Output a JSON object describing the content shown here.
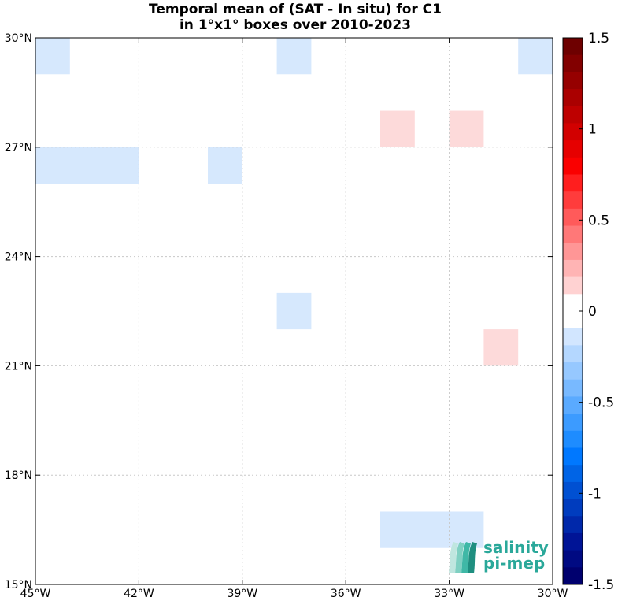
{
  "title_line1": "Temporal mean of (SAT - In situ) for C1",
  "title_line2": "in 1°x1° boxes over 2010-2023",
  "lon_ticks": [
    "45°W",
    "42°W",
    "39°W",
    "36°W",
    "33°W",
    "30°W"
  ],
  "lat_ticks": [
    "15°N",
    "18°N",
    "21°N",
    "24°N",
    "27°N",
    "30°N"
  ],
  "colorbar": {
    "ticks": [
      "1.5",
      "1",
      "0.5",
      "0",
      "-0.5",
      "-1",
      "-1.5"
    ],
    "range": [
      -1.5,
      1.5
    ],
    "colors_top_to_bottom": [
      "#6e0000",
      "#820000",
      "#960000",
      "#aa0000",
      "#be0000",
      "#d20000",
      "#e60000",
      "#fa0000",
      "#ff1e1e",
      "#ff3c3c",
      "#ff5a5a",
      "#ff7878",
      "#ff9696",
      "#ffb4b4",
      "#ffd2d2",
      "#ffffff",
      "#ffffff",
      "#d2e6ff",
      "#b4d7ff",
      "#96c8ff",
      "#78b9ff",
      "#5aaaff",
      "#3c9bff",
      "#1e8cff",
      "#0078ff",
      "#0064e6",
      "#0050d2",
      "#003cbe",
      "#0028aa",
      "#001496",
      "#000a82",
      "#00006e"
    ]
  },
  "logo": {
    "line1": "salinity",
    "line2": "pi-mep",
    "icon": "salinity-waves-logo-icon"
  },
  "chart_data": {
    "type": "heatmap",
    "title": "Temporal mean of (SAT - In situ) for C1 in 1°x1° boxes over 2010-2023",
    "xlim": [
      -45,
      -30
    ],
    "ylim": [
      15,
      30
    ],
    "grid": true,
    "cells": [
      {
        "lon_min": -45,
        "lon_max": -44,
        "lat_min": 29,
        "lat_max": 30,
        "value": -0.15,
        "color": "#d6e8fd"
      },
      {
        "lon_min": -38,
        "lon_max": -37,
        "lat_min": 29,
        "lat_max": 30,
        "value": -0.15,
        "color": "#d6e8fd"
      },
      {
        "lon_min": -31,
        "lon_max": -30,
        "lat_min": 29,
        "lat_max": 30,
        "value": -0.15,
        "color": "#d6e8fd"
      },
      {
        "lon_min": -35,
        "lon_max": -34,
        "lat_min": 27,
        "lat_max": 28,
        "value": 0.15,
        "color": "#fddada"
      },
      {
        "lon_min": -33,
        "lon_max": -32,
        "lat_min": 27,
        "lat_max": 28,
        "value": 0.15,
        "color": "#fddada"
      },
      {
        "lon_min": -45,
        "lon_max": -42,
        "lat_min": 26,
        "lat_max": 27,
        "value": -0.15,
        "color": "#d6e8fd"
      },
      {
        "lon_min": -40,
        "lon_max": -39,
        "lat_min": 26,
        "lat_max": 27,
        "value": -0.15,
        "color": "#d6e8fd"
      },
      {
        "lon_min": -38,
        "lon_max": -37,
        "lat_min": 22,
        "lat_max": 23,
        "value": -0.15,
        "color": "#d6e8fd"
      },
      {
        "lon_min": -32,
        "lon_max": -31,
        "lat_min": 21,
        "lat_max": 22,
        "value": 0.15,
        "color": "#fddada"
      },
      {
        "lon_min": -35,
        "lon_max": -32,
        "lat_min": 16,
        "lat_max": 17,
        "value": -0.15,
        "color": "#d6e8fd"
      }
    ]
  }
}
